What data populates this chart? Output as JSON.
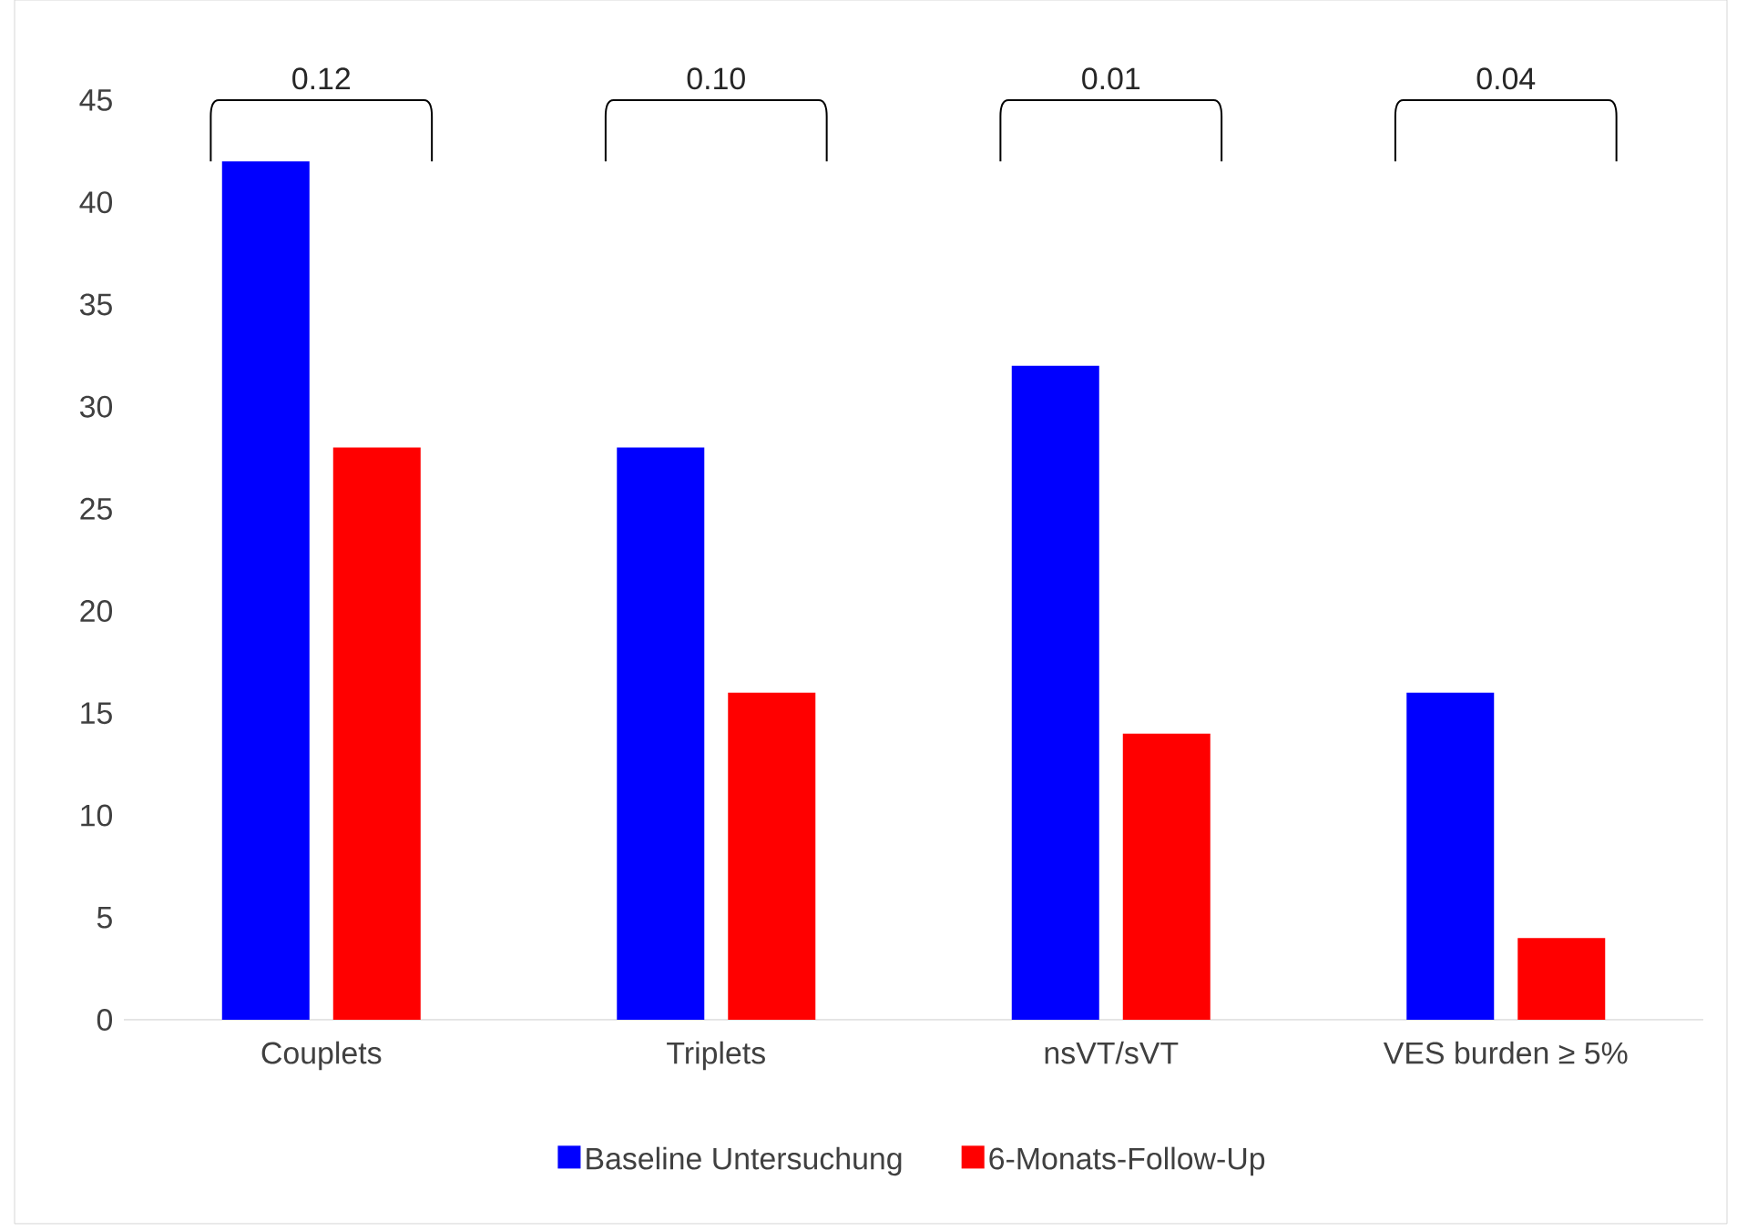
{
  "chart_data": {
    "type": "bar",
    "categories": [
      "Couplets",
      "Triplets",
      "nsVT/sVT",
      "VES burden ≥ 5%"
    ],
    "series": [
      {
        "name": "Baseline Untersuchung",
        "color": "#0000ff",
        "values": [
          42,
          28,
          32,
          16
        ]
      },
      {
        "name": "6-Monats-Follow-Up",
        "color": "#ff0000",
        "values": [
          28,
          16,
          14,
          4
        ]
      }
    ],
    "ylim": [
      0,
      45
    ],
    "yticks": [
      0,
      5,
      10,
      15,
      20,
      25,
      30,
      35,
      40,
      45
    ],
    "legend": "bottom",
    "annotations": [
      "0.12",
      "0.10",
      "0.01",
      "0.04"
    ]
  }
}
